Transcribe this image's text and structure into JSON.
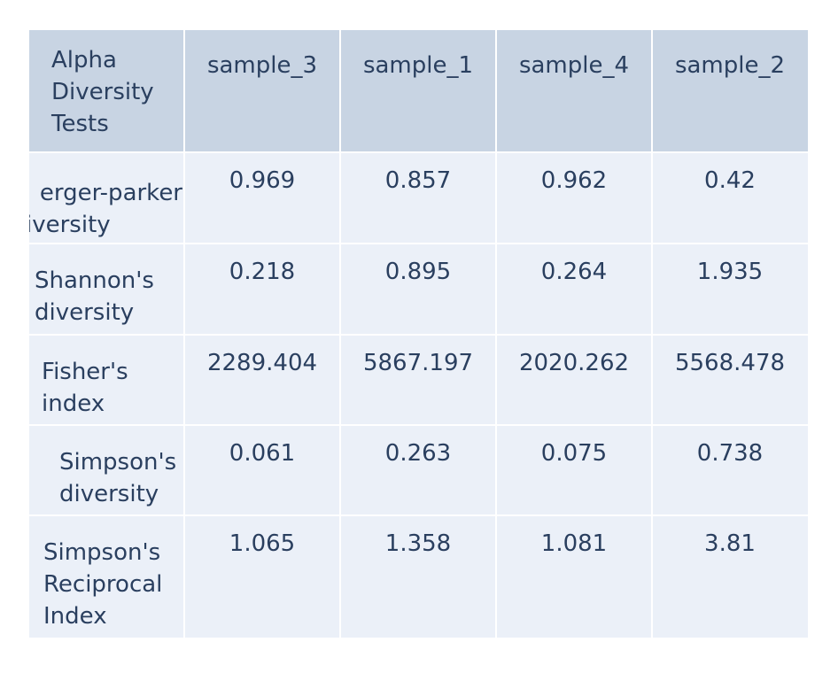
{
  "chart_data": {
    "type": "table",
    "header": {
      "corner": "Alpha\nDiversity\nTests",
      "columns": [
        "sample_3",
        "sample_1",
        "sample_4",
        "sample_2"
      ]
    },
    "rows": [
      {
        "label": "erger-parker\niversity",
        "values": [
          "0.969",
          "0.857",
          "0.962",
          "0.42"
        ]
      },
      {
        "label": "Shannon's\ndiversity",
        "values": [
          "0.218",
          "0.895",
          "0.264",
          "1.935"
        ]
      },
      {
        "label": "Fisher's\nindex",
        "values": [
          "2289.404",
          "5867.197",
          "2020.262",
          "5568.478"
        ]
      },
      {
        "label": "Simpson's\ndiversity",
        "values": [
          "0.061",
          "0.263",
          "0.075",
          "0.738"
        ]
      },
      {
        "label": "Simpson's\nReciprocal\nIndex",
        "values": [
          "1.065",
          "1.358",
          "1.081",
          "3.81"
        ]
      }
    ],
    "colors": {
      "header_fill": "#c8d4e3",
      "cell_fill": "#ebf0f8",
      "grid_line": "#ffffff",
      "text": "#2a3f5f"
    }
  }
}
